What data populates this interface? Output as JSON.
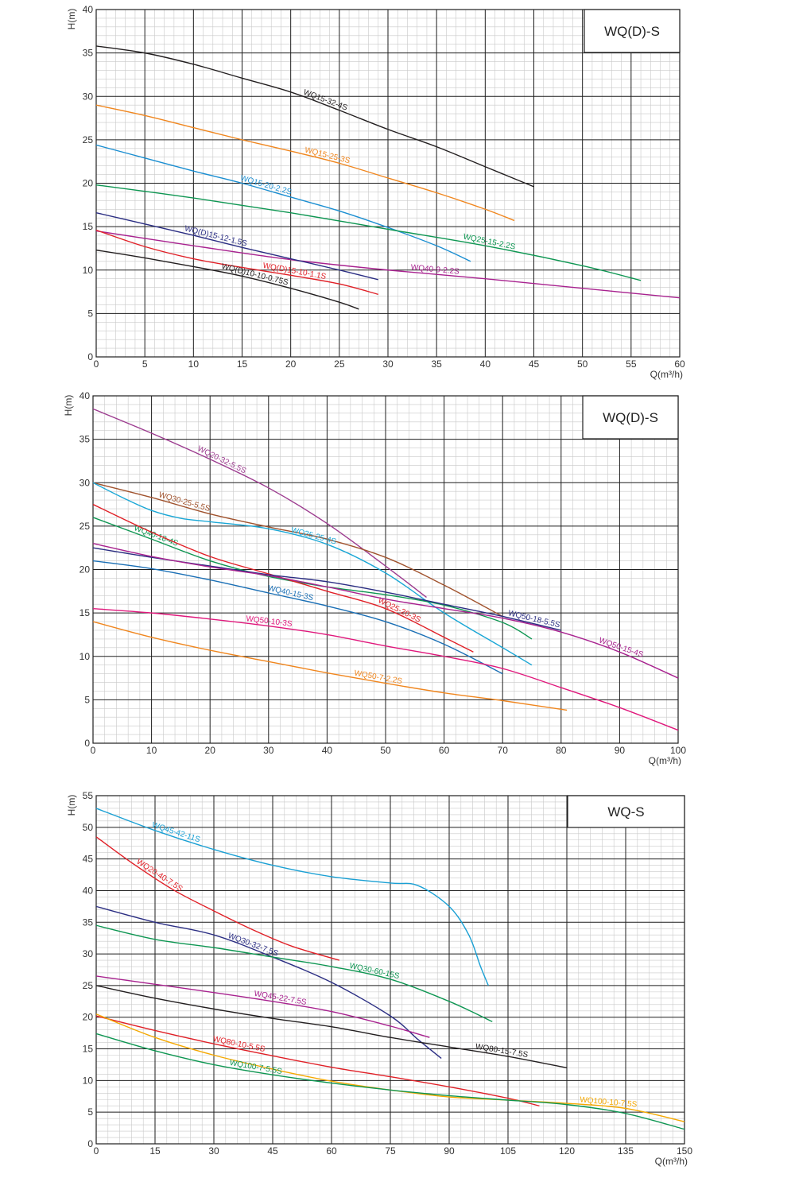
{
  "chart_data": [
    {
      "type": "line",
      "title": "WQ(D)-S",
      "ylabel": "H(m)",
      "xlabel": "Q(m³/h)",
      "xlim": [
        0,
        60
      ],
      "ylim": [
        0,
        40
      ],
      "xticks": [
        0,
        5,
        10,
        15,
        20,
        25,
        30,
        35,
        40,
        45,
        50,
        55,
        60
      ],
      "yticks": [
        0,
        5,
        10,
        15,
        20,
        25,
        30,
        35,
        40
      ],
      "grid": true,
      "series": [
        {
          "name": "WQ15-32-4S",
          "color": "#231f20",
          "x": [
            0,
            5,
            10,
            15,
            20,
            25,
            30,
            35,
            40,
            45
          ],
          "y": [
            35.8,
            35,
            33.7,
            32.1,
            30.5,
            28.4,
            26.2,
            24.2,
            21.9,
            19.6
          ]
        },
        {
          "name": "WQ15-25-3S",
          "color": "#f0861e",
          "x": [
            0,
            5,
            10,
            15,
            20,
            25,
            30,
            35,
            40,
            43
          ],
          "y": [
            29,
            27.8,
            26.4,
            25,
            23.7,
            22.3,
            20.6,
            18.9,
            17,
            15.7
          ]
        },
        {
          "name": "WQ15-20-2.2S",
          "color": "#1a8ed1",
          "x": [
            0,
            5,
            10,
            15,
            20,
            25,
            30,
            35,
            38.5
          ],
          "y": [
            24.4,
            22.9,
            21.4,
            20,
            18.4,
            16.8,
            14.9,
            12.8,
            11
          ]
        },
        {
          "name": "WQ25-15-2.2S",
          "color": "#0e9652",
          "x": [
            0,
            10,
            20,
            30,
            40,
            50,
            56
          ],
          "y": [
            19.8,
            18.3,
            16.6,
            14.7,
            12.8,
            10.5,
            8.8
          ]
        },
        {
          "name": "WQ40-9-2.2S",
          "color": "#a8228f",
          "x": [
            0,
            10,
            20,
            30,
            40,
            50,
            60
          ],
          "y": [
            14.5,
            12.8,
            11.2,
            10,
            9,
            7.9,
            6.8
          ]
        },
        {
          "name": "WQ(D)15-12-1.5S",
          "color": "#2b2e83",
          "x": [
            0,
            5,
            10,
            15,
            20,
            25,
            29
          ],
          "y": [
            16.6,
            15.3,
            14,
            12.6,
            11.3,
            10,
            8.9
          ]
        },
        {
          "name": "WQ(D)15-10-1.1S",
          "color": "#e02027",
          "x": [
            0,
            5,
            10,
            15,
            20,
            25,
            29
          ],
          "y": [
            14.6,
            12.7,
            11.3,
            10.3,
            9.4,
            8.4,
            7.2
          ]
        },
        {
          "name": "WQ(D)10-10-0.75S",
          "color": "#231f20",
          "x": [
            0,
            5,
            10,
            15,
            20,
            25,
            27
          ],
          "y": [
            12.3,
            11.4,
            10.4,
            9.3,
            7.9,
            6.3,
            5.5
          ]
        }
      ]
    },
    {
      "type": "line",
      "title": "WQ(D)-S",
      "ylabel": "H(m)",
      "xlabel": "Q(m³/h)",
      "xlim": [
        0,
        100
      ],
      "ylim": [
        0,
        40
      ],
      "xticks": [
        0,
        10,
        20,
        30,
        40,
        50,
        60,
        70,
        80,
        90,
        100
      ],
      "yticks": [
        0,
        5,
        10,
        15,
        20,
        25,
        30,
        35,
        40
      ],
      "grid": true,
      "series": [
        {
          "name": "WQ20-32-5.5S",
          "color": "#9c3b8f",
          "x": [
            0,
            10,
            20,
            30,
            40,
            50,
            57
          ],
          "y": [
            38.5,
            35.7,
            32.7,
            29.4,
            25.3,
            20.4,
            16.8
          ]
        },
        {
          "name": "WQ30-25-5.5S",
          "color": "#a0522d",
          "x": [
            0,
            10,
            20,
            30,
            40,
            50,
            60,
            70
          ],
          "y": [
            30,
            28.3,
            26.4,
            24.9,
            23.5,
            21.4,
            18.2,
            14.6
          ]
        },
        {
          "name": "WQ25-25-4S",
          "color": "#1aa7d6",
          "x": [
            0,
            5,
            10,
            15,
            20,
            30,
            40,
            50,
            60,
            70,
            75
          ],
          "y": [
            30,
            28.3,
            26.8,
            25.9,
            25.5,
            24.7,
            22.9,
            19.6,
            15,
            11,
            9
          ]
        },
        {
          "name": "WQ40-18-4S",
          "color": "#0e9652",
          "x": [
            0,
            10,
            20,
            30,
            40,
            50,
            60,
            70,
            75
          ],
          "y": [
            26,
            23.5,
            21,
            19.2,
            18,
            17.1,
            15.9,
            13.9,
            12
          ]
        },
        {
          "name": "WQ25-20-3S",
          "color": "#e02027",
          "x": [
            0,
            10,
            20,
            30,
            40,
            50,
            60,
            65
          ],
          "y": [
            27.5,
            24.3,
            21.5,
            19.5,
            17.5,
            15.5,
            12.2,
            10.5
          ]
        },
        {
          "name": "WQ50-18-5.5S",
          "color": "#2b2e83",
          "x": [
            0,
            10,
            20,
            30,
            40,
            50,
            60,
            70,
            80
          ],
          "y": [
            22.5,
            21.4,
            20.4,
            19.4,
            18.6,
            17.4,
            16,
            14.6,
            13
          ]
        },
        {
          "name": "WQ50-15-4S",
          "color": "#a8228f",
          "x": [
            0,
            10,
            20,
            30,
            40,
            50,
            60,
            70,
            80,
            90,
            100
          ],
          "y": [
            23,
            21.5,
            20.3,
            19.3,
            18,
            16.6,
            15.5,
            14.4,
            12.8,
            10.5,
            7.5
          ]
        },
        {
          "name": "WQ40-15-3S",
          "color": "#1a6fb5",
          "x": [
            0,
            10,
            20,
            30,
            40,
            50,
            60,
            70
          ],
          "y": [
            21,
            20.1,
            18.8,
            17.3,
            15.8,
            14,
            11.4,
            8
          ]
        },
        {
          "name": "WQ50-10-3S",
          "color": "#e0187c",
          "x": [
            0,
            10,
            20,
            30,
            40,
            50,
            60,
            70,
            80,
            90,
            100
          ],
          "y": [
            15.5,
            15,
            14.3,
            13.5,
            12.5,
            11.2,
            10,
            8.6,
            6.4,
            4.1,
            1.5
          ]
        },
        {
          "name": "WQ50-7-2.2S",
          "color": "#f0861e",
          "x": [
            0,
            10,
            20,
            30,
            40,
            50,
            60,
            70,
            81
          ],
          "y": [
            14,
            12.2,
            10.7,
            9.4,
            8.1,
            6.9,
            5.8,
            4.9,
            3.8
          ]
        }
      ]
    },
    {
      "type": "line",
      "title": "WQ-S",
      "ylabel": "H(m)",
      "xlabel": "Q(m³/h)",
      "xlim": [
        0,
        150
      ],
      "ylim": [
        0,
        55
      ],
      "xticks": [
        0,
        15,
        30,
        45,
        60,
        75,
        90,
        105,
        120,
        135,
        150
      ],
      "yticks": [
        0,
        5,
        10,
        15,
        20,
        25,
        30,
        35,
        40,
        45,
        50,
        55
      ],
      "grid": true,
      "series": [
        {
          "name": "WQ45-42-11S",
          "color": "#1aa0d4",
          "x": [
            0,
            15,
            30,
            45,
            60,
            75,
            82,
            90,
            95,
            98,
            100
          ],
          "y": [
            53,
            49.5,
            46.5,
            44,
            42.2,
            41.2,
            40.8,
            37.5,
            33,
            28,
            25
          ]
        },
        {
          "name": "WQ20-40-7.5S",
          "color": "#e02027",
          "x": [
            0,
            10,
            20,
            30,
            40,
            50,
            62
          ],
          "y": [
            48.5,
            44,
            40,
            36.8,
            33.8,
            31.2,
            29
          ]
        },
        {
          "name": "WQ30-32-7.5S",
          "color": "#2b2e83",
          "x": [
            0,
            15,
            30,
            45,
            60,
            75,
            82,
            88
          ],
          "y": [
            37.5,
            35,
            33,
            29.5,
            25.5,
            20.2,
            16.5,
            13.5
          ]
        },
        {
          "name": "WQ30-60-15S",
          "color": "#0e9652",
          "x": [
            0,
            15,
            30,
            45,
            60,
            75,
            90,
            101
          ],
          "y": [
            34.5,
            32.3,
            31,
            29.5,
            28,
            26,
            22.5,
            19.3
          ]
        },
        {
          "name": "WQ45-22-7.5S",
          "color": "#a8228f",
          "x": [
            0,
            15,
            30,
            45,
            60,
            75,
            85
          ],
          "y": [
            26.5,
            25.2,
            23.9,
            22.5,
            20.9,
            18.6,
            16.8
          ]
        },
        {
          "name": "WQ80-15-7.5S",
          "color": "#231f20",
          "x": [
            0,
            15,
            30,
            45,
            60,
            75,
            90,
            105,
            120
          ],
          "y": [
            25,
            23,
            21.3,
            19.8,
            18.5,
            16.8,
            15.3,
            13.8,
            12
          ]
        },
        {
          "name": "WQ80-10-5.5S",
          "color": "#e02027",
          "x": [
            0,
            15,
            30,
            45,
            60,
            75,
            90,
            105,
            113
          ],
          "y": [
            20.2,
            17.9,
            15.8,
            13.9,
            12.1,
            10.6,
            9,
            7.2,
            6
          ]
        },
        {
          "name": "WQ100-10-7.5S",
          "color": "#f5a800",
          "x": [
            0,
            15,
            30,
            45,
            60,
            75,
            90,
            105,
            120,
            135,
            150
          ],
          "y": [
            20.5,
            16.8,
            14,
            11.8,
            9.9,
            8.5,
            7.4,
            6.9,
            6.4,
            5.6,
            3.5
          ]
        },
        {
          "name": "WQ100-7-5.5S",
          "color": "#0e9652",
          "x": [
            0,
            15,
            30,
            45,
            60,
            75,
            90,
            105,
            120,
            135,
            150
          ],
          "y": [
            17.4,
            14.7,
            12.5,
            10.9,
            9.6,
            8.5,
            7.6,
            6.9,
            6.2,
            4.8,
            2.3
          ]
        }
      ]
    }
  ]
}
